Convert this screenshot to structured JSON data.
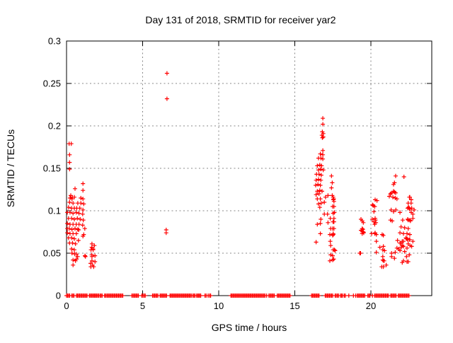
{
  "chart_data": {
    "type": "scatter",
    "title": "Day 131 of 2018, SRMTID for receiver yar2",
    "xlabel": "GPS time / hours",
    "ylabel": "SRMTID / TECUs",
    "xlim": [
      0,
      24
    ],
    "ylim": [
      0,
      0.3
    ],
    "grid": true,
    "legend": "none",
    "marker": "plus",
    "marker_color": "#ff0000",
    "xticks": [
      {
        "v": 0,
        "label": "0"
      },
      {
        "v": 5,
        "label": "5"
      },
      {
        "v": 10,
        "label": "10"
      },
      {
        "v": 15,
        "label": "15"
      },
      {
        "v": 20,
        "label": "20"
      }
    ],
    "yticks": [
      {
        "v": 0,
        "label": "0"
      },
      {
        "v": 0.05,
        "label": "0.05"
      },
      {
        "v": 0.1,
        "label": "0.1"
      },
      {
        "v": 0.15,
        "label": "0.15"
      },
      {
        "v": 0.2,
        "label": "0.2"
      },
      {
        "v": 0.25,
        "label": "0.25"
      },
      {
        "v": 0.3,
        "label": "0.3"
      }
    ],
    "points": [
      [
        0.17,
        0.179
      ],
      [
        0.31,
        0.179
      ],
      [
        0.2,
        0.166
      ],
      [
        0.2,
        0.157
      ],
      [
        0.2,
        0.149
      ],
      [
        1.08,
        0.132
      ],
      [
        0.56,
        0.126
      ],
      [
        1.08,
        0.124
      ],
      [
        0.28,
        0.118
      ],
      [
        0.39,
        0.116
      ],
      [
        0.23,
        0.115
      ],
      [
        0.51,
        0.116
      ],
      [
        0.36,
        0.114
      ],
      [
        0.94,
        0.115
      ],
      [
        1.08,
        0.114
      ],
      [
        0.2,
        0.11
      ],
      [
        0.43,
        0.109
      ],
      [
        0.74,
        0.109
      ],
      [
        0.94,
        0.109
      ],
      [
        1.13,
        0.108
      ],
      [
        0.13,
        0.104
      ],
      [
        0.33,
        0.103
      ],
      [
        0.51,
        0.103
      ],
      [
        0.67,
        0.103
      ],
      [
        0.87,
        0.103
      ],
      [
        1.08,
        0.101
      ],
      [
        0.05,
        0.098
      ],
      [
        0.23,
        0.098
      ],
      [
        0.43,
        0.097
      ],
      [
        0.64,
        0.098
      ],
      [
        0.82,
        0.097
      ],
      [
        1.06,
        0.096
      ],
      [
        0.13,
        0.091
      ],
      [
        0.33,
        0.091
      ],
      [
        0.51,
        0.09
      ],
      [
        0.71,
        0.091
      ],
      [
        0.9,
        0.09
      ],
      [
        1.1,
        0.089
      ],
      [
        0.05,
        0.085
      ],
      [
        0.23,
        0.084
      ],
      [
        0.43,
        0.084
      ],
      [
        0.64,
        0.084
      ],
      [
        0.82,
        0.084
      ],
      [
        1.06,
        0.083
      ],
      [
        0.05,
        0.079
      ],
      [
        0.17,
        0.079
      ],
      [
        0.36,
        0.078
      ],
      [
        0.56,
        0.079
      ],
      [
        0.74,
        0.078
      ],
      [
        1.2,
        0.079
      ],
      [
        0.8,
        0.0775
      ],
      [
        0.05,
        0.074
      ],
      [
        0.23,
        0.073
      ],
      [
        0.43,
        0.073
      ],
      [
        0.64,
        0.073
      ],
      [
        1.13,
        0.072
      ],
      [
        1.08,
        0.07
      ],
      [
        0.13,
        0.068
      ],
      [
        0.33,
        0.068
      ],
      [
        0.51,
        0.067
      ],
      [
        0.78,
        0.065
      ],
      [
        0.2,
        0.062
      ],
      [
        0.39,
        0.062
      ],
      [
        0.59,
        0.061
      ],
      [
        1.67,
        0.061
      ],
      [
        1.83,
        0.059
      ],
      [
        0.33,
        0.055
      ],
      [
        0.51,
        0.054
      ],
      [
        1.75,
        0.054
      ],
      [
        1.66,
        0.057
      ],
      [
        1.74,
        0.055
      ],
      [
        1.61,
        0.054
      ],
      [
        0.36,
        0.05
      ],
      [
        0.54,
        0.049
      ],
      [
        0.65,
        0.049
      ],
      [
        1.21,
        0.047
      ],
      [
        1.67,
        0.046
      ],
      [
        1.87,
        0.047
      ],
      [
        1.66,
        0.048
      ],
      [
        0.43,
        0.042
      ],
      [
        0.59,
        0.041
      ],
      [
        0.65,
        0.043
      ],
      [
        0.73,
        0.046
      ],
      [
        1.24,
        0.046
      ],
      [
        1.67,
        0.041
      ],
      [
        1.87,
        0.04
      ],
      [
        0.43,
        0.036
      ],
      [
        1.58,
        0.038
      ],
      [
        1.6,
        0.034
      ],
      [
        1.71,
        0.036
      ],
      [
        1.78,
        0.034
      ],
      [
        6.6,
        0.262
      ],
      [
        6.6,
        0.232
      ],
      [
        6.55,
        0.0775
      ],
      [
        6.55,
        0.074
      ],
      [
        16.84,
        0.209
      ],
      [
        16.84,
        0.202
      ],
      [
        16.81,
        0.193
      ],
      [
        16.87,
        0.191
      ],
      [
        16.78,
        0.189
      ],
      [
        16.87,
        0.187
      ],
      [
        16.81,
        0.186
      ],
      [
        16.84,
        0.171
      ],
      [
        16.68,
        0.167
      ],
      [
        16.84,
        0.166
      ],
      [
        16.56,
        0.162
      ],
      [
        16.71,
        0.162
      ],
      [
        16.84,
        0.161
      ],
      [
        16.48,
        0.153
      ],
      [
        16.64,
        0.154
      ],
      [
        16.76,
        0.153
      ],
      [
        16.56,
        0.148
      ],
      [
        16.71,
        0.149
      ],
      [
        16.87,
        0.148
      ],
      [
        16.43,
        0.143
      ],
      [
        16.59,
        0.143
      ],
      [
        16.74,
        0.142
      ],
      [
        17.41,
        0.141
      ],
      [
        16.4,
        0.136
      ],
      [
        16.56,
        0.137
      ],
      [
        16.71,
        0.136
      ],
      [
        17.46,
        0.133
      ],
      [
        16.37,
        0.13
      ],
      [
        16.52,
        0.131
      ],
      [
        16.68,
        0.13
      ],
      [
        17.41,
        0.127
      ],
      [
        16.48,
        0.123
      ],
      [
        16.64,
        0.124
      ],
      [
        16.79,
        0.123
      ],
      [
        16.4,
        0.119
      ],
      [
        16.59,
        0.12
      ],
      [
        17.18,
        0.118
      ],
      [
        17.46,
        0.118
      ],
      [
        16.48,
        0.114
      ],
      [
        16.68,
        0.114
      ],
      [
        17.02,
        0.116
      ],
      [
        17.52,
        0.116
      ],
      [
        16.56,
        0.108
      ],
      [
        16.74,
        0.109
      ],
      [
        16.94,
        0.11
      ],
      [
        17.57,
        0.111
      ],
      [
        16.64,
        0.104
      ],
      [
        17.57,
        0.105
      ],
      [
        16.94,
        0.096
      ],
      [
        17.15,
        0.096
      ],
      [
        17.52,
        0.097
      ],
      [
        16.71,
        0.09
      ],
      [
        17.33,
        0.091
      ],
      [
        17.57,
        0.091
      ],
      [
        16.48,
        0.084
      ],
      [
        16.68,
        0.085
      ],
      [
        17.18,
        0.086
      ],
      [
        17.57,
        0.087
      ],
      [
        17.36,
        0.079
      ],
      [
        17.57,
        0.079
      ],
      [
        16.68,
        0.073
      ],
      [
        17.3,
        0.072
      ],
      [
        17.52,
        0.073
      ],
      [
        16.4,
        0.063
      ],
      [
        17.33,
        0.064
      ],
      [
        17.36,
        0.059
      ],
      [
        17.52,
        0.054
      ],
      [
        17.36,
        0.048
      ],
      [
        17.3,
        0.041
      ],
      [
        17.49,
        0.042
      ],
      [
        17.53,
        0.113
      ],
      [
        17.56,
        0.114
      ],
      [
        17.49,
        0.105
      ],
      [
        17.6,
        0.098
      ],
      [
        17.51,
        0.087
      ],
      [
        17.55,
        0.087
      ],
      [
        17.49,
        0.079
      ],
      [
        17.53,
        0.072
      ],
      [
        17.49,
        0.071
      ],
      [
        17.6,
        0.054
      ],
      [
        17.65,
        0.053
      ],
      [
        17.49,
        0.047
      ],
      [
        17.56,
        0.043
      ],
      [
        19.35,
        0.09
      ],
      [
        19.43,
        0.088
      ],
      [
        19.5,
        0.086
      ],
      [
        19.43,
        0.079
      ],
      [
        19.47,
        0.078
      ],
      [
        19.53,
        0.074
      ],
      [
        19.43,
        0.073
      ],
      [
        19.35,
        0.077
      ],
      [
        19.43,
        0.076
      ],
      [
        19.5,
        0.075
      ],
      [
        19.32,
        0.05
      ],
      [
        19.27,
        0.05
      ],
      [
        20.28,
        0.113
      ],
      [
        20.4,
        0.112
      ],
      [
        20.25,
        0.105
      ],
      [
        20.2,
        0.099
      ],
      [
        20.1,
        0.107
      ],
      [
        20.16,
        0.106
      ],
      [
        20.09,
        0.09
      ],
      [
        20.28,
        0.091
      ],
      [
        20.3,
        0.089
      ],
      [
        20.2,
        0.087
      ],
      [
        20.33,
        0.086
      ],
      [
        20.25,
        0.084
      ],
      [
        20.05,
        0.073
      ],
      [
        20.28,
        0.074
      ],
      [
        20.26,
        0.073
      ],
      [
        20.36,
        0.072
      ],
      [
        20.36,
        0.064
      ],
      [
        20.59,
        0.057
      ],
      [
        20.82,
        0.058
      ],
      [
        20.74,
        0.072
      ],
      [
        20.82,
        0.071
      ],
      [
        20.36,
        0.051
      ],
      [
        20.9,
        0.053
      ],
      [
        20.78,
        0.054
      ],
      [
        20.78,
        0.046
      ],
      [
        20.87,
        0.041
      ],
      [
        20.82,
        0.034
      ],
      [
        21.01,
        0.036
      ],
      [
        20.71,
        0.034
      ],
      [
        20.78,
        0.042
      ],
      [
        20.84,
        0.041
      ],
      [
        21.29,
        0.12
      ],
      [
        21.49,
        0.123
      ],
      [
        21.63,
        0.121
      ],
      [
        21.21,
        0.117
      ],
      [
        21.44,
        0.116
      ],
      [
        21.6,
        0.115
      ],
      [
        21.36,
        0.121
      ],
      [
        21.55,
        0.122
      ],
      [
        21.63,
        0.141
      ],
      [
        22.17,
        0.14
      ],
      [
        21.55,
        0.133
      ],
      [
        21.49,
        0.131
      ],
      [
        21.33,
        0.101
      ],
      [
        21.49,
        0.099
      ],
      [
        21.64,
        0.101
      ],
      [
        21.91,
        0.098
      ],
      [
        21.71,
        0.114
      ],
      [
        22.56,
        0.116
      ],
      [
        21.29,
        0.089
      ],
      [
        21.4,
        0.088
      ],
      [
        21.36,
        0.046
      ],
      [
        21.55,
        0.044
      ],
      [
        21.36,
        0.05
      ],
      [
        21.6,
        0.051
      ],
      [
        21.75,
        0.065
      ],
      [
        21.98,
        0.062
      ],
      [
        21.71,
        0.056
      ],
      [
        21.83,
        0.055
      ],
      [
        22.06,
        0.059
      ],
      [
        21.91,
        0.074
      ],
      [
        22.14,
        0.073
      ],
      [
        22.37,
        0.073
      ],
      [
        22.56,
        0.072
      ],
      [
        21.98,
        0.081
      ],
      [
        22.22,
        0.08
      ],
      [
        22.45,
        0.079
      ],
      [
        21.91,
        0.062
      ],
      [
        22.14,
        0.058
      ],
      [
        22.0,
        0.057
      ],
      [
        22.37,
        0.056
      ],
      [
        21.91,
        0.053
      ],
      [
        22.22,
        0.052
      ],
      [
        22.42,
        0.103
      ],
      [
        22.56,
        0.102
      ],
      [
        22.68,
        0.103
      ],
      [
        22.84,
        0.101
      ],
      [
        22.42,
        0.09
      ],
      [
        22.56,
        0.089
      ],
      [
        22.76,
        0.091
      ],
      [
        22.65,
        0.113
      ],
      [
        22.45,
        0.109
      ],
      [
        22.52,
        0.103
      ],
      [
        22.48,
        0.104
      ],
      [
        22.55,
        0.102
      ],
      [
        22.76,
        0.096
      ],
      [
        22.65,
        0.098
      ],
      [
        22.64,
        0.109
      ],
      [
        22.53,
        0.116
      ],
      [
        22.09,
        0.089
      ],
      [
        22.45,
        0.089
      ],
      [
        22.6,
        0.088
      ],
      [
        22.34,
        0.067
      ],
      [
        22.3,
        0.068
      ],
      [
        22.38,
        0.067
      ],
      [
        22.52,
        0.066
      ],
      [
        22.45,
        0.061
      ],
      [
        22.14,
        0.064
      ],
      [
        22.06,
        0.064
      ],
      [
        22.42,
        0.066
      ],
      [
        22.56,
        0.066
      ],
      [
        22.76,
        0.064
      ],
      [
        22.06,
        0.039
      ],
      [
        22.45,
        0.04
      ],
      [
        22.34,
        0.046
      ],
      [
        22.52,
        0.048
      ],
      [
        22.14,
        0.041
      ],
      [
        22.37,
        0.04
      ],
      [
        22.57,
        0.059
      ],
      [
        22.68,
        0.058
      ]
    ],
    "zero_value_segments_hours": [
      [
        0.0,
        0.25
      ],
      [
        0.35,
        0.5
      ],
      [
        0.65,
        1.35
      ],
      [
        1.5,
        1.85
      ],
      [
        1.9,
        2.15
      ],
      [
        2.2,
        2.4
      ],
      [
        2.5,
        2.6
      ],
      [
        2.65,
        3.75
      ],
      [
        4.3,
        4.75
      ],
      [
        4.95,
        5.05
      ],
      [
        5.1,
        5.2
      ],
      [
        5.65,
        6.0
      ],
      [
        6.15,
        6.6
      ],
      [
        6.8,
        8.25
      ],
      [
        8.3,
        8.45
      ],
      [
        8.55,
        8.7
      ],
      [
        8.75,
        8.85
      ],
      [
        9.1,
        9.2
      ],
      [
        9.3,
        9.35
      ],
      [
        9.4,
        9.5
      ],
      [
        10.8,
        13.05
      ],
      [
        13.15,
        13.2
      ],
      [
        13.3,
        13.7
      ],
      [
        13.85,
        14.75
      ],
      [
        16.1,
        16.65
      ],
      [
        17.0,
        17.55
      ],
      [
        17.65,
        17.75
      ],
      [
        17.8,
        17.9
      ],
      [
        18.0,
        18.15
      ],
      [
        18.25,
        18.35
      ],
      [
        18.55,
        18.6
      ],
      [
        18.85,
        18.9
      ],
      [
        19.0,
        19.05
      ],
      [
        19.1,
        19.65
      ],
      [
        19.8,
        20.0
      ],
      [
        20.1,
        20.15
      ],
      [
        20.25,
        21.2
      ],
      [
        21.3,
        21.65
      ],
      [
        21.8,
        22.55
      ]
    ]
  },
  "colors": {
    "marker": "#ff0000",
    "border": "#000000",
    "grid": "#888888",
    "background": "#ffffff",
    "text": "#000000"
  }
}
